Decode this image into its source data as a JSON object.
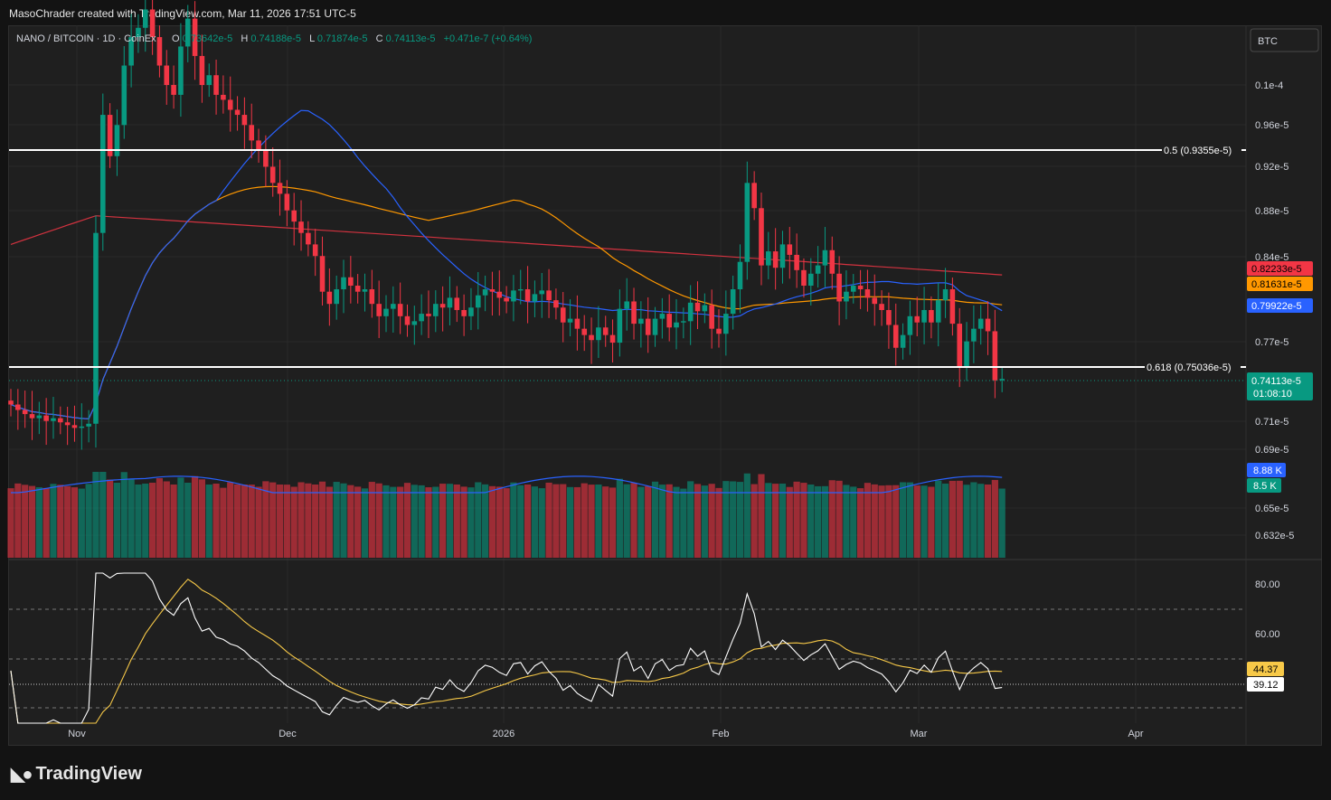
{
  "header": {
    "text": "MasoChrader created with TradingView.com, Mar 11, 2026 17:51 UTC-5"
  },
  "legend": {
    "symbol": "NANO / BITCOIN · 1D · CoinEx",
    "o_label": "O",
    "o_value": "0.73642e-5",
    "h_label": "H",
    "h_value": "0.74188e-5",
    "l_label": "L",
    "l_value": "0.71874e-5",
    "c_label": "C",
    "c_value": "0.74113e-5",
    "change": "+0.471e-7 (+0.64%)"
  },
  "currency_button": "BTC",
  "brand": "TradingView",
  "price_axis": [
    "0.1e-4",
    "0.96e-5",
    "0.92e-5",
    "0.88e-5",
    "0.84e-5",
    "0.77e-5",
    "0.71e-5",
    "0.69e-5",
    "0.65e-5",
    "0.632e-5"
  ],
  "rsi_axis": [
    "80.00",
    "60.00"
  ],
  "time_axis": [
    "Nov",
    "Dec",
    "2026",
    "Feb",
    "Mar",
    "Apr"
  ],
  "fib_levels": [
    {
      "label": "0.5 (0.9355e-5)",
      "value": 0.9355
    },
    {
      "label": "0.618 (0.75036e-5)",
      "value": 0.75036
    }
  ],
  "badges": {
    "ma_red": {
      "text": "0.82233e-5",
      "color": "#f23645"
    },
    "ma_orange": {
      "text": "0.81631e-5",
      "color": "#ff9800"
    },
    "ma_blue": {
      "text": "0.79922e-5",
      "color": "#2962ff"
    },
    "last_price": {
      "text": "0.74113e-5",
      "color": "#089981"
    },
    "countdown": "01:08:10",
    "vol_ma": {
      "text": "8.88 K",
      "color": "#2962ff"
    },
    "vol": {
      "text": "8.5 K",
      "color": "#089981"
    },
    "rsi_ma": {
      "text": "44.37",
      "color": "#f7c948"
    },
    "rsi": {
      "text": "39.12",
      "color": "#ffffff"
    }
  },
  "colors": {
    "up": "#089981",
    "down": "#f23645",
    "ma_red": "#f23645",
    "ma_orange": "#ff9800",
    "ma_blue": "#2962ff",
    "rsi": "#ffffff",
    "rsi_ma": "#f7c948"
  },
  "chart_data": {
    "type": "candlestick",
    "symbol": "NANO/BTC",
    "interval": "1D",
    "price_unit": "e-5 BTC",
    "ylim": [
      0.62,
      1.04
    ],
    "y_scale": "log",
    "x": [
      "2025-10-22",
      "2025-10-23",
      "2025-10-24",
      "2025-10-25",
      "2025-10-26",
      "2025-10-27",
      "2025-10-28",
      "2025-10-29",
      "2025-10-30",
      "2025-10-31",
      "2025-11-01",
      "2025-11-02",
      "2025-11-03",
      "2025-11-04",
      "2025-11-05",
      "2025-11-06",
      "2025-11-07",
      "2025-11-08",
      "2025-11-09",
      "2025-11-10",
      "2025-11-11",
      "2025-11-12",
      "2025-11-13",
      "2025-11-14",
      "2025-11-15",
      "2025-11-16",
      "2025-11-17",
      "2025-11-18",
      "2025-11-19",
      "2025-11-20",
      "2025-11-21",
      "2025-11-22",
      "2025-11-23",
      "2025-11-24",
      "2025-11-25",
      "2025-11-26",
      "2025-11-27",
      "2025-11-28",
      "2025-11-29",
      "2025-11-30",
      "2025-12-01",
      "2025-12-02",
      "2025-12-03",
      "2025-12-04",
      "2025-12-05",
      "2025-12-06",
      "2025-12-07",
      "2025-12-08",
      "2025-12-09",
      "2025-12-10",
      "2025-12-11",
      "2025-12-12",
      "2025-12-13",
      "2025-12-14",
      "2025-12-15",
      "2025-12-16",
      "2025-12-17",
      "2025-12-18",
      "2025-12-19",
      "2025-12-20",
      "2025-12-21",
      "2025-12-22",
      "2025-12-23",
      "2025-12-24",
      "2025-12-25",
      "2025-12-26",
      "2025-12-27",
      "2025-12-28",
      "2025-12-29",
      "2025-12-30",
      "2025-12-31",
      "2026-01-01",
      "2026-01-02",
      "2026-01-03",
      "2026-01-04",
      "2026-01-05",
      "2026-01-06",
      "2026-01-07",
      "2026-01-08",
      "2026-01-09",
      "2026-01-10",
      "2026-01-11",
      "2026-01-12",
      "2026-01-13",
      "2026-01-14",
      "2026-01-15",
      "2026-01-16",
      "2026-01-17",
      "2026-01-18",
      "2026-01-19",
      "2026-01-20",
      "2026-01-21",
      "2026-01-22",
      "2026-01-23",
      "2026-01-24",
      "2026-01-25",
      "2026-01-26",
      "2026-01-27",
      "2026-01-28",
      "2026-01-29",
      "2026-01-30",
      "2026-01-31",
      "2026-02-01",
      "2026-02-02",
      "2026-02-03",
      "2026-02-04",
      "2026-02-05",
      "2026-02-06",
      "2026-02-07",
      "2026-02-08",
      "2026-02-09",
      "2026-02-10",
      "2026-02-11",
      "2026-02-12",
      "2026-02-13",
      "2026-02-14",
      "2026-02-15",
      "2026-02-16",
      "2026-02-17",
      "2026-02-18",
      "2026-02-19",
      "2026-02-20",
      "2026-02-21",
      "2026-02-22",
      "2026-02-23",
      "2026-02-24",
      "2026-02-25",
      "2026-02-26",
      "2026-02-27",
      "2026-02-28",
      "2026-03-01",
      "2026-03-02",
      "2026-03-03",
      "2026-03-04",
      "2026-03-05",
      "2026-03-06",
      "2026-03-07",
      "2026-03-08",
      "2026-03-09",
      "2026-03-10",
      "2026-03-11"
    ],
    "close": [
      0.722,
      0.718,
      0.715,
      0.712,
      0.714,
      0.71,
      0.712,
      0.709,
      0.707,
      0.705,
      0.706,
      0.708,
      0.86,
      0.97,
      0.93,
      0.96,
      1.02,
      1.05,
      1.06,
      1.08,
      1.05,
      1.02,
      1.0,
      0.99,
      1.04,
      1.07,
      1.03,
      1.0,
      1.01,
      0.99,
      0.985,
      0.975,
      0.97,
      0.96,
      0.945,
      0.935,
      0.92,
      0.905,
      0.895,
      0.88,
      0.87,
      0.86,
      0.85,
      0.84,
      0.81,
      0.8,
      0.812,
      0.822,
      0.815,
      0.81,
      0.812,
      0.8,
      0.79,
      0.796,
      0.8,
      0.79,
      0.783,
      0.786,
      0.792,
      0.79,
      0.8,
      0.797,
      0.805,
      0.795,
      0.79,
      0.797,
      0.807,
      0.812,
      0.81,
      0.805,
      0.802,
      0.811,
      0.812,
      0.802,
      0.808,
      0.811,
      0.803,
      0.797,
      0.785,
      0.788,
      0.78,
      0.775,
      0.771,
      0.781,
      0.775,
      0.769,
      0.796,
      0.802,
      0.784,
      0.788,
      0.775,
      0.788,
      0.792,
      0.781,
      0.785,
      0.786,
      0.801,
      0.794,
      0.799,
      0.78,
      0.776,
      0.792,
      0.812,
      0.835,
      0.905,
      0.882,
      0.832,
      0.844,
      0.83,
      0.85,
      0.841,
      0.828,
      0.815,
      0.825,
      0.832,
      0.845,
      0.825,
      0.802,
      0.81,
      0.815,
      0.812,
      0.805,
      0.8,
      0.795,
      0.783,
      0.765,
      0.775,
      0.79,
      0.785,
      0.795,
      0.785,
      0.803,
      0.812,
      0.784,
      0.75,
      0.77,
      0.78,
      0.788,
      0.778,
      0.74,
      0.7411
    ],
    "volume_label_last": "8.5 K",
    "volume_ma_last": "8.88 K",
    "rsi": {
      "period": 14,
      "last": 39.12,
      "ma_last": 44.37,
      "levels": [
        70,
        50,
        30
      ]
    },
    "moving_averages": [
      {
        "color": "red",
        "last": 0.82233
      },
      {
        "color": "orange",
        "last": 0.81631
      },
      {
        "color": "blue",
        "last": 0.79922
      }
    ],
    "fibonacci": [
      {
        "ratio": 0.5,
        "price": 0.9355
      },
      {
        "ratio": 0.618,
        "price": 0.75036
      }
    ],
    "grid": true
  }
}
